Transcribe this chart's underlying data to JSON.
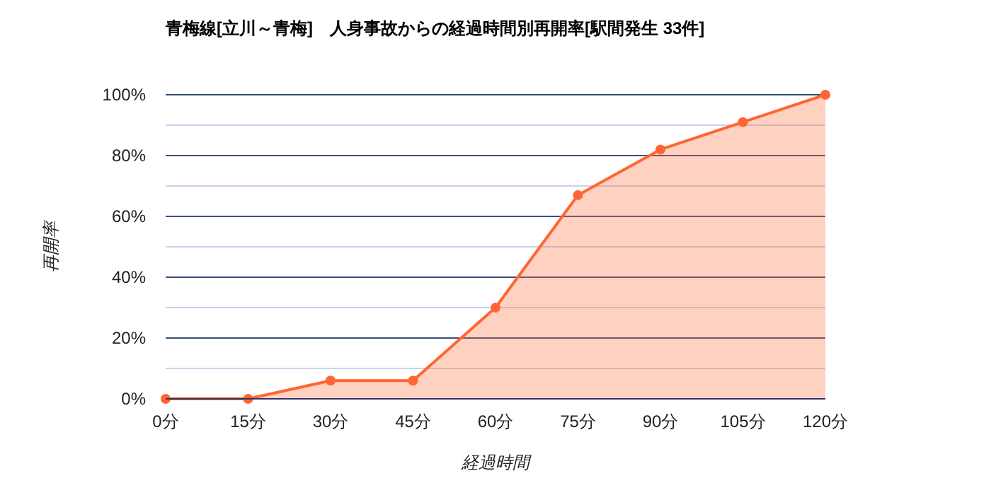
{
  "chart_data": {
    "type": "area",
    "title": "青梅線[立川～青梅]　人身事故からの経過時間別再開率[駅間発生 33件]",
    "xlabel": "経過時間",
    "ylabel": "再開率",
    "categories": [
      "0分",
      "15分",
      "30分",
      "45分",
      "60分",
      "75分",
      "90分",
      "105分",
      "120分"
    ],
    "series": [
      {
        "color": "#ff6633",
        "values": [
          0,
          0,
          6,
          6,
          30,
          67,
          82,
          91,
          100
        ]
      }
    ],
    "ylim": [
      0,
      100
    ],
    "yticks": [
      {
        "value": 0,
        "label": "0%"
      },
      {
        "value": 10,
        "label": null
      },
      {
        "value": 20,
        "label": "20%"
      },
      {
        "value": 30,
        "label": null
      },
      {
        "value": 40,
        "label": "40%"
      },
      {
        "value": 50,
        "label": null
      },
      {
        "value": 60,
        "label": "60%"
      },
      {
        "value": 70,
        "label": null
      },
      {
        "value": 80,
        "label": "80%"
      },
      {
        "value": 90,
        "label": null
      },
      {
        "value": 100,
        "label": "100%"
      }
    ],
    "grid": "y",
    "marker": "circle"
  }
}
